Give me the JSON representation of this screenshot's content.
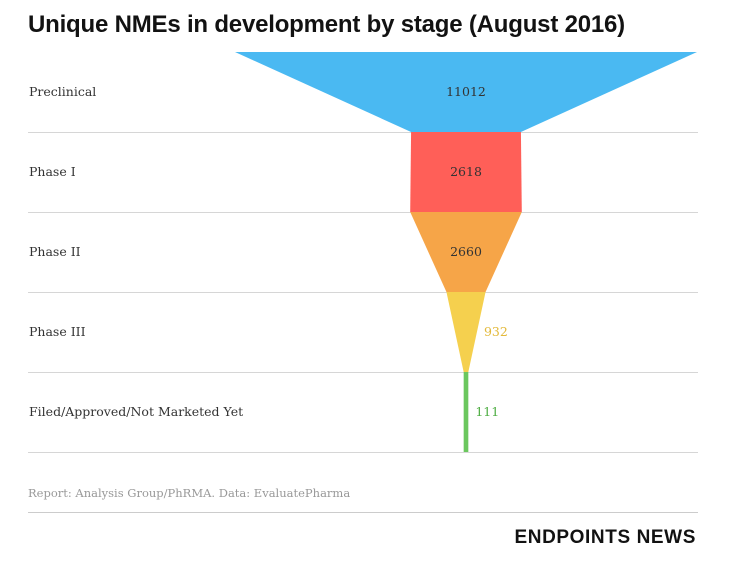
{
  "header": {
    "title": "Unique NMEs in development by stage (August 2016)"
  },
  "chart_data": {
    "type": "funnel",
    "title": "Unique NMEs in development by stage (August 2016)",
    "stages": [
      {
        "label": "Preclinical",
        "value": 11012,
        "color": "#4ab9f2",
        "value_color": "#333333"
      },
      {
        "label": "Phase I",
        "value": 2618,
        "color": "#ff5f58",
        "value_color": "#333333"
      },
      {
        "label": "Phase II",
        "value": 2660,
        "color": "#f6a548",
        "value_color": "#333333"
      },
      {
        "label": "Phase III",
        "value": 932,
        "color": "#f5d04e",
        "value_color": "#e3b93a"
      },
      {
        "label": "Filed/Approved/Not Marketed Yet",
        "value": 111,
        "color": "#6bc75e",
        "value_color": "#4fae44"
      }
    ],
    "grid": true
  },
  "footer": {
    "source": "Report: Analysis Group/PhRMA. Data: EvaluatePharma",
    "brand": "ENDPOINTS NEWS"
  }
}
